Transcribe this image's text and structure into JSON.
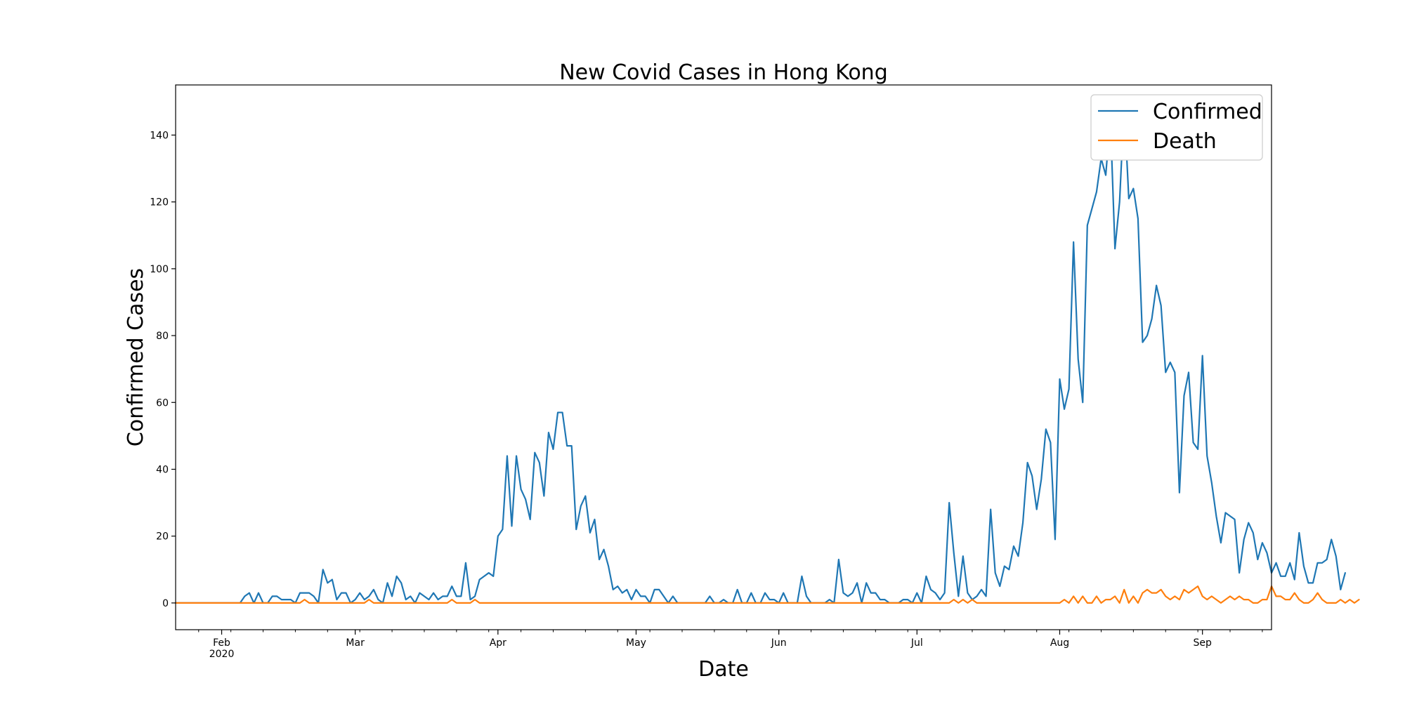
{
  "chart_data": {
    "type": "line",
    "title": "New Covid Cases in Hong Kong",
    "xlabel": "Date",
    "ylabel": "Confirmed Cases",
    "x_start": "2020-01-22",
    "x_end": "2020-09-16",
    "xlim": [
      "2020-01-22",
      "2020-09-16"
    ],
    "ylim": [
      -8,
      155
    ],
    "grid": false,
    "legend_position": "top-right",
    "y_ticks": [
      0,
      20,
      40,
      60,
      80,
      100,
      120,
      140
    ],
    "x_ticks": [
      {
        "date": "2020-02-01",
        "label": "Feb",
        "sublabel": "2020"
      },
      {
        "date": "2020-03-01",
        "label": "Mar",
        "sublabel": ""
      },
      {
        "date": "2020-04-01",
        "label": "Apr",
        "sublabel": ""
      },
      {
        "date": "2020-05-01",
        "label": "May",
        "sublabel": ""
      },
      {
        "date": "2020-06-01",
        "label": "Jun",
        "sublabel": ""
      },
      {
        "date": "2020-07-01",
        "label": "Jul",
        "sublabel": ""
      },
      {
        "date": "2020-08-01",
        "label": "Aug",
        "sublabel": ""
      },
      {
        "date": "2020-09-01",
        "label": "Sep",
        "sublabel": ""
      }
    ],
    "series": [
      {
        "name": "Confirmed",
        "color": "#1f77b4",
        "values": [
          0,
          0,
          0,
          0,
          0,
          0,
          0,
          0,
          0,
          0,
          0,
          0,
          0,
          0,
          0,
          2,
          3,
          0,
          3,
          0,
          0,
          2,
          2,
          1,
          1,
          1,
          0,
          3,
          3,
          3,
          2,
          0,
          10,
          6,
          7,
          1,
          3,
          3,
          0,
          1,
          3,
          1,
          2,
          4,
          1,
          0,
          6,
          2,
          8,
          6,
          1,
          2,
          0,
          3,
          2,
          1,
          3,
          1,
          2,
          2,
          5,
          2,
          2,
          12,
          1,
          2,
          7,
          8,
          9,
          8,
          20,
          22,
          44,
          23,
          44,
          34,
          31,
          25,
          45,
          42,
          32,
          51,
          46,
          57,
          57,
          47,
          47,
          22,
          29,
          32,
          21,
          25,
          13,
          16,
          11,
          4,
          5,
          3,
          4,
          1,
          4,
          2,
          2,
          0,
          4,
          4,
          2,
          0,
          2,
          0,
          0,
          0,
          0,
          0,
          0,
          0,
          2,
          0,
          0,
          1,
          0,
          0,
          4,
          0,
          0,
          3,
          0,
          0,
          3,
          1,
          1,
          0,
          3,
          0,
          0,
          0,
          8,
          2,
          0,
          0,
          0,
          0,
          1,
          0,
          13,
          3,
          2,
          3,
          6,
          0,
          6,
          3,
          3,
          1,
          1,
          0,
          0,
          0,
          1,
          1,
          0,
          3,
          0,
          8,
          4,
          3,
          1,
          3,
          30,
          15,
          2,
          14,
          3,
          1,
          2,
          4,
          2,
          28,
          9,
          5,
          11,
          10,
          17,
          14,
          24,
          42,
          38,
          28,
          37,
          52,
          48,
          19,
          67,
          58,
          64,
          108,
          73,
          60,
          113,
          118,
          123,
          133,
          128,
          145,
          106,
          120,
          149,
          121,
          124,
          115,
          78,
          80,
          85,
          95,
          89,
          69,
          72,
          69,
          33,
          62,
          69,
          48,
          46,
          74,
          44,
          36,
          26,
          18,
          27,
          26,
          25,
          9,
          19,
          24,
          21,
          13,
          18,
          15,
          9,
          12,
          8,
          8,
          12,
          7,
          21,
          11,
          6,
          6,
          12,
          12,
          13,
          19,
          14,
          4,
          9
        ]
      },
      {
        "name": "Death",
        "color": "#ff7f0e",
        "values": [
          0,
          0,
          0,
          0,
          0,
          0,
          0,
          0,
          0,
          0,
          0,
          0,
          0,
          0,
          0,
          0,
          0,
          0,
          0,
          0,
          0,
          0,
          0,
          0,
          0,
          0,
          0,
          0,
          1,
          0,
          0,
          0,
          0,
          0,
          0,
          0,
          0,
          0,
          0,
          0,
          0,
          0,
          1,
          0,
          0,
          0,
          0,
          0,
          0,
          0,
          0,
          0,
          0,
          0,
          0,
          0,
          0,
          0,
          0,
          0,
          1,
          0,
          0,
          0,
          0,
          1,
          0,
          0,
          0,
          0,
          0,
          0,
          0,
          0,
          0,
          0,
          0,
          0,
          0,
          0,
          0,
          0,
          0,
          0,
          0,
          0,
          0,
          0,
          0,
          0,
          0,
          0,
          0,
          0,
          0,
          0,
          0,
          0,
          0,
          0,
          0,
          0,
          0,
          0,
          0,
          0,
          0,
          0,
          0,
          0,
          0,
          0,
          0,
          0,
          0,
          0,
          0,
          0,
          0,
          0,
          0,
          0,
          0,
          0,
          0,
          0,
          0,
          0,
          0,
          0,
          0,
          0,
          0,
          0,
          0,
          0,
          0,
          0,
          0,
          0,
          0,
          0,
          0,
          0,
          0,
          0,
          0,
          0,
          0,
          0,
          0,
          0,
          0,
          0,
          0,
          0,
          0,
          0,
          0,
          0,
          0,
          0,
          0,
          0,
          0,
          0,
          0,
          0,
          0,
          1,
          0,
          1,
          0,
          1,
          0,
          0,
          0,
          0,
          0,
          0,
          0,
          0,
          0,
          0,
          0,
          0,
          0,
          0,
          0,
          0,
          0,
          0,
          0,
          1,
          0,
          2,
          0,
          2,
          0,
          0,
          2,
          0,
          1,
          1,
          2,
          0,
          4,
          0,
          2,
          0,
          3,
          4,
          3,
          3,
          4,
          2,
          1,
          2,
          1,
          4,
          3,
          4,
          5,
          2,
          1,
          2,
          1,
          0,
          1,
          2,
          1,
          2,
          1,
          1,
          0,
          0,
          1,
          1,
          5,
          2,
          2,
          1,
          1,
          3,
          1,
          0,
          0,
          1,
          3,
          1,
          0,
          0,
          0,
          1,
          0,
          1,
          0,
          1
        ]
      }
    ]
  }
}
